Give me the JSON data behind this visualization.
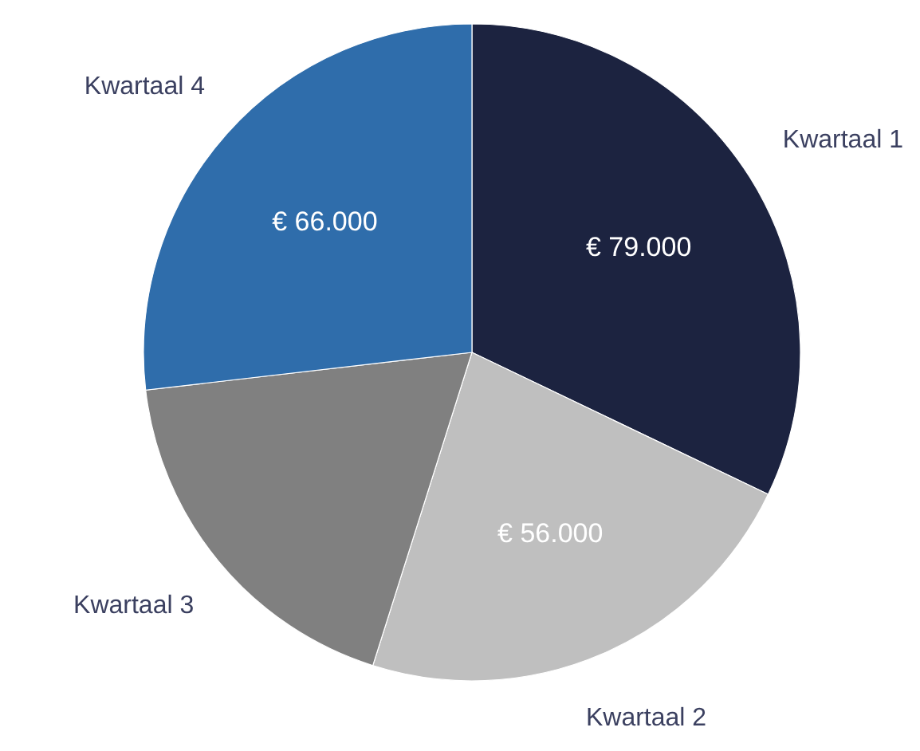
{
  "chart_data": {
    "type": "pie",
    "categories": [
      "Kwartaal 1",
      "Kwartaal 2",
      "Kwartaal 3",
      "Kwartaal 4"
    ],
    "values": [
      79000,
      56000,
      45000,
      66000
    ],
    "colors": [
      "#1c2340",
      "#bfbfbf",
      "#808080",
      "#2f6dab"
    ],
    "value_labels": [
      "€ 79.000",
      "€ 56.000",
      null,
      "€ 66.000"
    ]
  }
}
